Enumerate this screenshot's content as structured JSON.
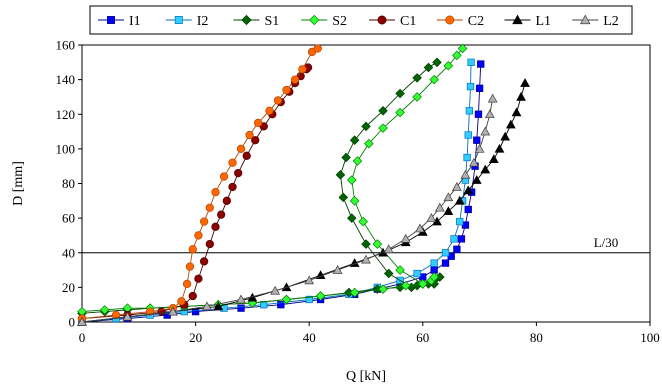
{
  "chart_data": {
    "type": "scatter",
    "xlabel": "Q [kN]",
    "ylabel": "D [mm]",
    "xlim": [
      0,
      100
    ],
    "ylim": [
      0,
      160
    ],
    "xticks": [
      0,
      20,
      40,
      60,
      80,
      100
    ],
    "yticks": [
      0,
      20,
      40,
      60,
      80,
      100,
      120,
      140,
      160
    ],
    "xtick_labels": [
      "0",
      "20",
      "40",
      "60",
      "80",
      "100"
    ],
    "ytick_labels": [
      "0",
      "20",
      "40",
      "60",
      "80",
      "100",
      "120",
      "140",
      "160"
    ],
    "grid": false,
    "legend_position": "top",
    "reference_line": {
      "y": 40,
      "label": "L/30"
    },
    "series": [
      {
        "name": "I1",
        "color": "#0000ff",
        "edge": "#00008b",
        "marker": "square",
        "x": [
          0,
          8,
          15,
          20,
          28,
          35,
          42,
          48,
          52,
          56,
          60,
          62,
          64,
          65,
          66,
          66.8,
          67.5,
          68,
          68.6,
          69.2,
          69.5,
          69.8,
          70,
          70.2
        ],
        "y": [
          0,
          2,
          4,
          6,
          8,
          10,
          13,
          16,
          19,
          22,
          26,
          30,
          34,
          38,
          42,
          48,
          56,
          65,
          75,
          90,
          105,
          120,
          135,
          149
        ]
      },
      {
        "name": "I2",
        "color": "#33ccff",
        "edge": "#0070c0",
        "marker": "square",
        "x": [
          0,
          6,
          12,
          18,
          25,
          32,
          40,
          47,
          52,
          56,
          59,
          62,
          64,
          65.5,
          66.5,
          67,
          67.5,
          67.8,
          68,
          68.2,
          68.4,
          68.5
        ],
        "y": [
          0,
          2,
          4,
          6,
          8,
          10,
          13,
          16,
          20,
          24,
          28,
          34,
          40,
          48,
          58,
          70,
          82,
          95,
          108,
          122,
          136,
          150
        ]
      },
      {
        "name": "S1",
        "color": "#006400",
        "edge": "#004000",
        "marker": "diamond",
        "x": [
          0,
          4,
          8,
          12,
          18,
          24,
          30,
          36,
          42,
          47,
          52,
          56,
          59,
          61,
          62,
          63,
          62,
          58,
          54,
          50,
          47.5,
          46,
          45.5,
          46.5,
          48,
          50,
          53,
          56,
          59,
          61,
          62.5
        ],
        "y": [
          5,
          6,
          7,
          8,
          9,
          10,
          11,
          13,
          15,
          17,
          19,
          20,
          21,
          22,
          24,
          26,
          22,
          20,
          28,
          45,
          60,
          72,
          85,
          95,
          105,
          113,
          122,
          132,
          141,
          147,
          150
        ]
      },
      {
        "name": "S2",
        "color": "#33ff33",
        "edge": "#008000",
        "marker": "diamond",
        "x": [
          0,
          4,
          8,
          12,
          18,
          24,
          30,
          36,
          42,
          48,
          53,
          57,
          60,
          61.5,
          62,
          60,
          56,
          52,
          49.5,
          48,
          47.5,
          48.5,
          50.5,
          53,
          56,
          59,
          62,
          64.5,
          66,
          67
        ],
        "y": [
          6,
          7,
          8,
          8,
          9,
          10,
          11,
          13,
          15,
          17,
          19,
          21,
          22,
          24,
          26,
          22,
          30,
          45,
          58,
          70,
          82,
          93,
          103,
          112,
          121,
          130,
          140,
          148,
          154,
          158
        ]
      },
      {
        "name": "C1",
        "color": "#8b0000",
        "edge": "#4d0000",
        "marker": "circle",
        "x": [
          0,
          8,
          14,
          18,
          19.5,
          20.5,
          21.5,
          22.5,
          23.5,
          24.5,
          25.5,
          26.5,
          27.5,
          29,
          30.5,
          32,
          33.5,
          35,
          36.5,
          37.5,
          38.5,
          39.5,
          39.8
        ],
        "y": [
          2,
          4,
          6,
          10,
          15,
          25,
          35,
          45,
          55,
          62,
          70,
          78,
          86,
          96,
          105,
          113,
          120,
          127,
          133,
          138,
          142,
          146,
          147
        ]
      },
      {
        "name": "C2",
        "color": "#ff6600",
        "edge": "#b34700",
        "marker": "circle",
        "x": [
          0,
          6,
          12,
          16,
          17.5,
          18.5,
          19,
          19.5,
          20.5,
          21.5,
          22.5,
          23.5,
          25,
          26.5,
          28,
          29.5,
          31,
          33,
          34.5,
          36,
          37.5,
          38.8,
          40.5,
          41.5
        ],
        "y": [
          2,
          4,
          6,
          8,
          12,
          22,
          32,
          42,
          50,
          58,
          66,
          75,
          84,
          92,
          100,
          108,
          115,
          122,
          128,
          134,
          140,
          146,
          156,
          158
        ]
      },
      {
        "name": "L1",
        "color": "#000000",
        "edge": "#000000",
        "marker": "triangle",
        "x": [
          0,
          8,
          16,
          24,
          30,
          36,
          42,
          48,
          53,
          57,
          60,
          62.5,
          64.5,
          66.5,
          68,
          69.5,
          71,
          72.5,
          73.5,
          74.5,
          75.5,
          76.5,
          77.3,
          78
        ],
        "y": [
          0,
          3,
          6,
          9,
          14,
          20,
          27,
          34,
          40,
          46,
          52,
          58,
          64,
          70,
          76,
          82,
          88,
          94,
          100,
          107,
          114,
          121,
          130,
          138
        ]
      },
      {
        "name": "L2",
        "color": "#b0b0b0",
        "edge": "#404040",
        "marker": "triangle",
        "x": [
          0,
          8,
          16,
          22,
          28,
          34,
          40,
          45,
          50,
          54,
          57,
          59.5,
          61.5,
          63,
          64.5,
          66,
          67.5,
          69,
          70,
          71,
          71.8,
          72.3
        ],
        "y": [
          0,
          3,
          6,
          9,
          13,
          18,
          24,
          30,
          36,
          42,
          48,
          54,
          60,
          66,
          72,
          78,
          85,
          92,
          100,
          110,
          120,
          129
        ]
      }
    ]
  }
}
